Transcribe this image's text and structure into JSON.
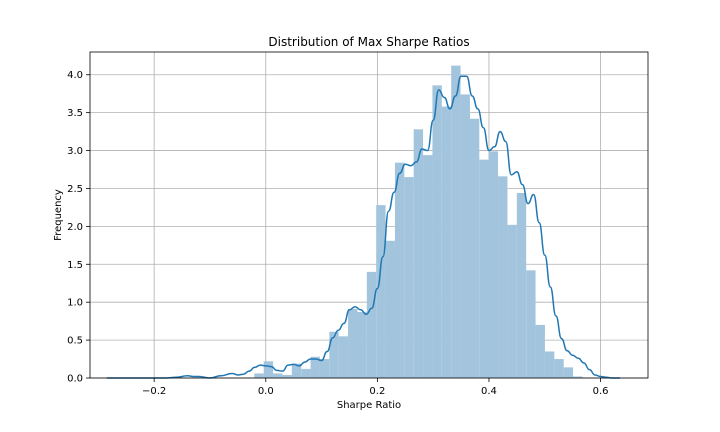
{
  "chart_data": {
    "type": "bar",
    "title": "Distribution of Max Sharpe Ratios",
    "xlabel": "Sharpe Ratio",
    "ylabel": "Frequency",
    "xlim": [
      -0.315,
      0.685
    ],
    "ylim": [
      0.0,
      4.3
    ],
    "xticks": [
      {
        "value": -0.2,
        "label": "−0.2"
      },
      {
        "value": 0.0,
        "label": "0.0"
      },
      {
        "value": 0.2,
        "label": "0.2"
      },
      {
        "value": 0.4,
        "label": "0.4"
      },
      {
        "value": 0.6,
        "label": "0.6"
      }
    ],
    "yticks": [
      {
        "value": 0.0,
        "label": "0.0"
      },
      {
        "value": 0.5,
        "label": "0.5"
      },
      {
        "value": 1.0,
        "label": "1.0"
      },
      {
        "value": 1.5,
        "label": "1.5"
      },
      {
        "value": 2.0,
        "label": "2.0"
      },
      {
        "value": 2.5,
        "label": "2.5"
      },
      {
        "value": 3.0,
        "label": "3.0"
      },
      {
        "value": 3.5,
        "label": "3.5"
      },
      {
        "value": 4.0,
        "label": "4.0"
      }
    ],
    "grid": true,
    "colors": {
      "bars": "#a2c4dd",
      "kde": "#1f77b4",
      "grid": "#b0b0b0"
    },
    "histogram": {
      "bin_edges": [
        -0.2893,
        -0.2725,
        -0.2557,
        -0.2389,
        -0.2221,
        -0.2053,
        -0.1885,
        -0.1717,
        -0.1549,
        -0.1381,
        -0.1213,
        -0.1045,
        -0.0877,
        -0.0709,
        -0.0541,
        -0.0373,
        -0.0205,
        -0.0037,
        0.0131,
        0.0299,
        0.0467,
        0.0635,
        0.0803,
        0.0971,
        0.1139,
        0.1307,
        0.1475,
        0.1643,
        0.1811,
        0.1979,
        0.2147,
        0.2315,
        0.2483,
        0.2651,
        0.2819,
        0.2987,
        0.3155,
        0.3323,
        0.3491,
        0.3659,
        0.3827,
        0.3995,
        0.4163,
        0.4331,
        0.4499,
        0.4667,
        0.4835,
        0.5003,
        0.5171,
        0.5339,
        0.5507,
        0.5675,
        0.5843,
        0.6011,
        0.6179,
        0.6347
      ],
      "counts": [
        0.0,
        0.0,
        0.0,
        0.0,
        0.0,
        0.0,
        0.0,
        0.0,
        0.0,
        0.0,
        0.0,
        0.0,
        0.0,
        0.0,
        0.0,
        0.0,
        0.06,
        0.22,
        0.06,
        0.04,
        0.19,
        0.12,
        0.28,
        0.25,
        0.61,
        0.55,
        0.91,
        0.87,
        1.4,
        2.28,
        1.81,
        2.84,
        2.65,
        3.28,
        2.94,
        3.86,
        3.58,
        4.12,
        3.74,
        3.42,
        2.88,
        2.99,
        2.66,
        2.02,
        2.44,
        1.42,
        0.7,
        0.35,
        0.25,
        0.14,
        0.02,
        0.0,
        0.0,
        0.0,
        0.0
      ]
    },
    "kde": {
      "x": [
        -0.285,
        -0.26,
        -0.24,
        -0.22,
        -0.2,
        -0.18,
        -0.16,
        -0.14,
        -0.13,
        -0.12,
        -0.1,
        -0.08,
        -0.06,
        -0.05,
        -0.04,
        -0.03,
        -0.02,
        -0.01,
        0.0,
        0.01,
        0.02,
        0.03,
        0.04,
        0.05,
        0.06,
        0.07,
        0.08,
        0.09,
        0.1,
        0.11,
        0.12,
        0.13,
        0.14,
        0.15,
        0.16,
        0.17,
        0.18,
        0.19,
        0.2,
        0.21,
        0.22,
        0.23,
        0.24,
        0.25,
        0.26,
        0.27,
        0.28,
        0.29,
        0.3,
        0.31,
        0.32,
        0.33,
        0.34,
        0.35,
        0.36,
        0.37,
        0.38,
        0.39,
        0.4,
        0.41,
        0.42,
        0.43,
        0.44,
        0.45,
        0.46,
        0.47,
        0.48,
        0.49,
        0.5,
        0.51,
        0.52,
        0.53,
        0.54,
        0.55,
        0.56,
        0.57,
        0.58,
        0.59,
        0.6,
        0.61,
        0.62,
        0.635
      ],
      "y": [
        0.0,
        0.0,
        0.0,
        0.0,
        0.0,
        0.0,
        0.01,
        0.03,
        0.02,
        0.02,
        0.0,
        0.03,
        0.06,
        0.04,
        0.05,
        0.09,
        0.14,
        0.17,
        0.16,
        0.15,
        0.1,
        0.09,
        0.17,
        0.18,
        0.16,
        0.21,
        0.25,
        0.25,
        0.23,
        0.35,
        0.53,
        0.63,
        0.72,
        0.9,
        0.94,
        0.9,
        0.84,
        0.92,
        1.18,
        1.6,
        2.2,
        2.45,
        2.7,
        2.82,
        2.8,
        2.85,
        3.02,
        3.0,
        3.4,
        3.8,
        3.7,
        3.55,
        3.72,
        3.98,
        3.98,
        3.72,
        3.55,
        3.3,
        3.0,
        3.05,
        3.25,
        3.12,
        2.68,
        2.72,
        2.55,
        2.3,
        2.42,
        2.05,
        1.62,
        1.2,
        0.82,
        0.52,
        0.36,
        0.3,
        0.26,
        0.2,
        0.11,
        0.04,
        0.02,
        0.01,
        0.0,
        0.0
      ]
    }
  }
}
